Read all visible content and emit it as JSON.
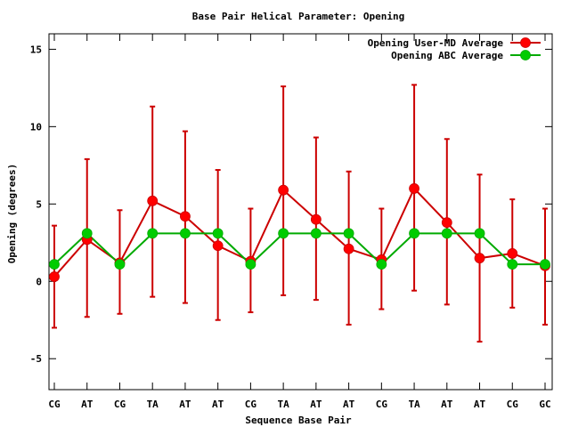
{
  "chart_data": {
    "type": "line",
    "title": "Base Pair Helical Parameter: Opening",
    "xlabel": "Sequence Base Pair",
    "ylabel": "Opening (degrees)",
    "categories": [
      "CG",
      "AT",
      "CG",
      "TA",
      "AT",
      "AT",
      "CG",
      "TA",
      "AT",
      "AT",
      "CG",
      "TA",
      "AT",
      "AT",
      "CG",
      "GC"
    ],
    "ylim": [
      -7,
      16
    ],
    "yticks": [
      -5,
      0,
      5,
      10,
      15
    ],
    "grid": false,
    "legend_position": "top-right",
    "series": [
      {
        "name": "Opening User-MD Average",
        "color": "#ff0000",
        "line_color": "#cc0000",
        "values": [
          0.3,
          2.7,
          1.2,
          5.2,
          4.2,
          2.3,
          1.3,
          5.9,
          4.0,
          2.1,
          1.4,
          6.0,
          3.8,
          1.5,
          1.8,
          1.0
        ],
        "err_low": [
          -3.0,
          -2.3,
          -2.1,
          -1.0,
          -1.4,
          -2.5,
          -2.0,
          -0.9,
          -1.2,
          -2.8,
          -1.8,
          -0.6,
          -1.5,
          -3.9,
          -1.7,
          -2.8
        ],
        "err_high": [
          3.6,
          7.9,
          4.6,
          11.3,
          9.7,
          7.2,
          4.7,
          12.6,
          9.3,
          7.1,
          4.7,
          12.7,
          9.2,
          6.9,
          5.3,
          4.7
        ]
      },
      {
        "name": "Opening ABC Average",
        "color": "#00cc00",
        "line_color": "#00aa00",
        "values": [
          1.1,
          3.1,
          1.1,
          3.1,
          3.1,
          3.1,
          1.1,
          3.1,
          3.1,
          3.1,
          1.1,
          3.1,
          3.1,
          3.1,
          1.1,
          1.1
        ]
      }
    ]
  }
}
